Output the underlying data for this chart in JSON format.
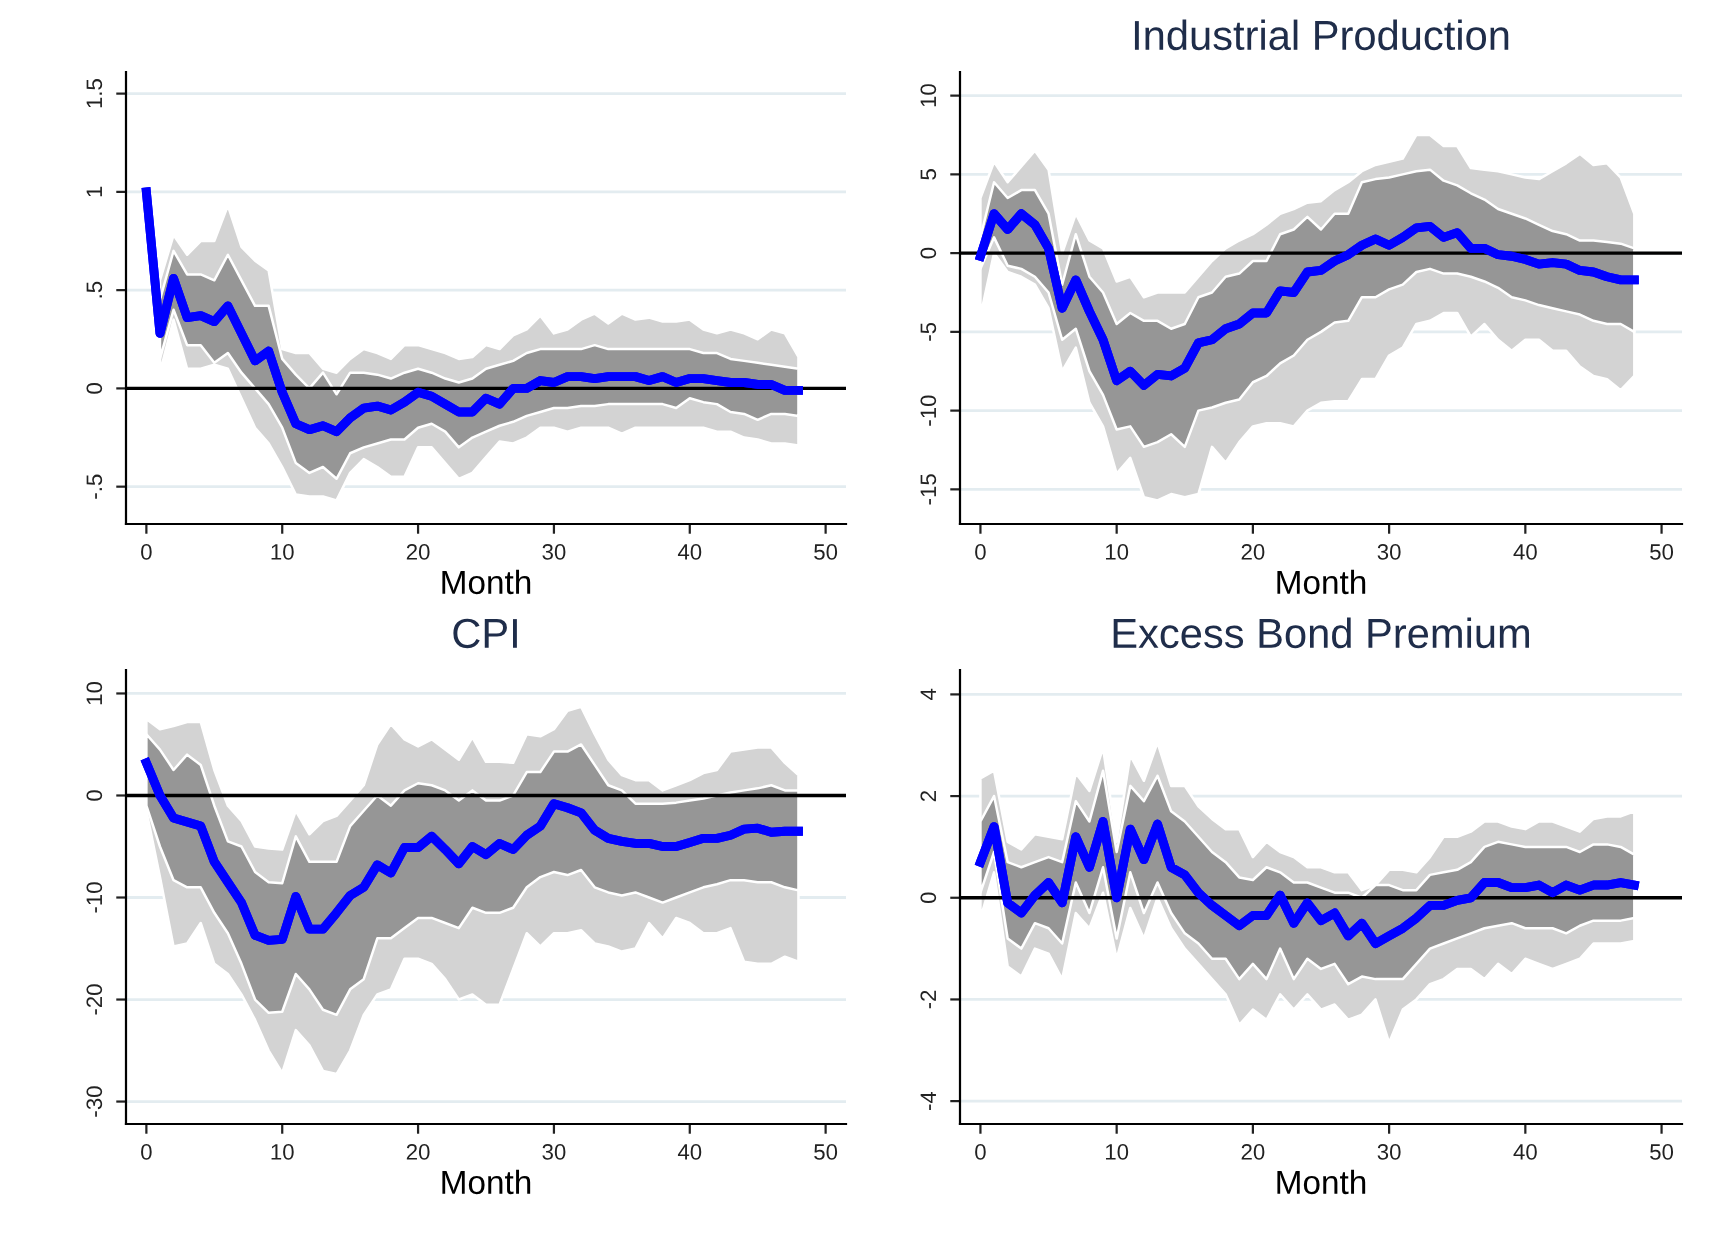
{
  "chart_data": [
    {
      "type": "line",
      "xlabel": "Month",
      "xlim": [
        -1.5,
        51.5
      ],
      "xticks": [
        0,
        10,
        20,
        30,
        40,
        50
      ],
      "ylim": [
        -0.69,
        1.61
      ],
      "yticks": [
        {
          "value": -0.5,
          "label": "-.5"
        },
        0,
        {
          "value": 0.5,
          "label": ".5"
        },
        1,
        1.5
      ],
      "grid": "y",
      "ref_lines": [
        {
          "axis": "y",
          "value": 0,
          "color": "#000000"
        }
      ],
      "series": [
        {
          "color": "#0000ff",
          "x": [
            0,
            1,
            2,
            3,
            4,
            5,
            6,
            7,
            8,
            9,
            10,
            11,
            12,
            13,
            14,
            15,
            16,
            17,
            18,
            19,
            20,
            21,
            22,
            23,
            24,
            25,
            26,
            27,
            28,
            29,
            30,
            31,
            32,
            33,
            34,
            35,
            36,
            37,
            38,
            39,
            40,
            41,
            42,
            43,
            44,
            45,
            46,
            47,
            48
          ],
          "values": [
            1.0,
            0.28,
            0.56,
            0.36,
            0.37,
            0.34,
            0.42,
            0.28,
            0.14,
            0.19,
            -0.02,
            -0.18,
            -0.21,
            -0.19,
            -0.22,
            -0.15,
            -0.1,
            -0.09,
            -0.11,
            -0.07,
            -0.02,
            -0.04,
            -0.08,
            -0.12,
            -0.12,
            -0.05,
            -0.08,
            0.0,
            0.0,
            0.04,
            0.03,
            0.06,
            0.06,
            0.05,
            0.06,
            0.06,
            0.06,
            0.04,
            0.06,
            0.03,
            0.05,
            0.05,
            0.04,
            0.03,
            0.03,
            0.02,
            0.02,
            -0.01,
            -0.01
          ],
          "lower": [
            null,
            0.08,
            0.35,
            0.1,
            0.1,
            0.12,
            0.1,
            -0.05,
            -0.2,
            -0.28,
            -0.4,
            -0.54,
            -0.55,
            -0.55,
            -0.57,
            -0.43,
            -0.36,
            -0.4,
            -0.45,
            -0.45,
            -0.3,
            -0.3,
            -0.38,
            -0.46,
            -0.43,
            -0.35,
            -0.27,
            -0.28,
            -0.25,
            -0.2,
            -0.2,
            -0.22,
            -0.2,
            -0.2,
            -0.2,
            -0.23,
            -0.2,
            -0.2,
            -0.2,
            -0.2,
            -0.2,
            -0.2,
            -0.22,
            -0.22,
            -0.25,
            -0.26,
            -0.28,
            -0.28,
            -0.29
          ],
          "upper": [
            null,
            0.55,
            0.78,
            0.68,
            0.75,
            0.75,
            0.93,
            0.72,
            0.65,
            0.6,
            0.2,
            0.18,
            0.18,
            0.1,
            0.08,
            0.15,
            0.2,
            0.18,
            0.15,
            0.22,
            0.22,
            0.2,
            0.18,
            0.15,
            0.16,
            0.22,
            0.2,
            0.27,
            0.3,
            0.37,
            0.28,
            0.3,
            0.35,
            0.38,
            0.33,
            0.38,
            0.35,
            0.36,
            0.34,
            0.34,
            0.35,
            0.3,
            0.28,
            0.3,
            0.28,
            0.25,
            0.3,
            0.28,
            0.16
          ]
        },
        {
          "color": "#0000ff",
          "x": [
            0,
            1,
            2,
            3,
            4,
            5,
            6,
            7,
            8,
            9,
            10,
            11,
            12,
            13,
            14,
            15,
            16,
            17,
            18,
            19,
            20,
            21,
            22,
            23,
            24,
            25,
            26,
            27,
            28,
            29,
            30,
            31,
            32,
            33,
            34,
            35,
            36,
            37,
            38,
            39,
            40,
            41,
            42,
            43,
            44,
            45,
            46,
            47,
            48
          ],
          "values": [
            1.0,
            0.28,
            0.56,
            0.36,
            0.37,
            0.34,
            0.42,
            0.28,
            0.14,
            0.19,
            -0.02,
            -0.18,
            -0.21,
            -0.19,
            -0.22,
            -0.15,
            -0.1,
            -0.09,
            -0.11,
            -0.07,
            -0.02,
            -0.04,
            -0.08,
            -0.12,
            -0.12,
            -0.05,
            -0.08,
            0.0,
            0.0,
            0.04,
            0.03,
            0.06,
            0.06,
            0.05,
            0.06,
            0.06,
            0.06,
            0.04,
            0.06,
            0.03,
            0.05,
            0.05,
            0.04,
            0.03,
            0.03,
            0.02,
            0.02,
            -0.01,
            -0.01
          ],
          "lower": [
            null,
            0.15,
            0.4,
            0.22,
            0.22,
            0.13,
            0.18,
            0.08,
            0.0,
            -0.08,
            -0.2,
            -0.38,
            -0.43,
            -0.4,
            -0.46,
            -0.33,
            -0.3,
            -0.28,
            -0.26,
            -0.26,
            -0.2,
            -0.18,
            -0.22,
            -0.3,
            -0.25,
            -0.22,
            -0.19,
            -0.17,
            -0.14,
            -0.12,
            -0.1,
            -0.1,
            -0.09,
            -0.09,
            -0.08,
            -0.08,
            -0.08,
            -0.08,
            -0.08,
            -0.1,
            -0.05,
            -0.07,
            -0.08,
            -0.12,
            -0.13,
            -0.16,
            -0.13,
            -0.13,
            -0.14
          ],
          "upper": [
            null,
            0.45,
            0.7,
            0.58,
            0.58,
            0.55,
            0.68,
            0.55,
            0.42,
            0.42,
            0.15,
            0.07,
            0.0,
            0.08,
            -0.03,
            0.08,
            0.08,
            0.07,
            0.05,
            0.08,
            0.1,
            0.08,
            0.05,
            0.03,
            0.05,
            0.1,
            0.12,
            0.14,
            0.18,
            0.2,
            0.2,
            0.2,
            0.2,
            0.22,
            0.2,
            0.2,
            0.2,
            0.2,
            0.2,
            0.2,
            0.2,
            0.18,
            0.18,
            0.15,
            0.14,
            0.13,
            0.12,
            0.11,
            0.1
          ]
        }
      ]
    },
    {
      "type": "line",
      "title": "Industrial Production",
      "xlabel": "Month",
      "xlim": [
        -1.5,
        51.5
      ],
      "xticks": [
        0,
        10,
        20,
        30,
        40,
        50
      ],
      "ylim": [
        -17.2,
        11.5
      ],
      "yticks": [
        -15,
        -10,
        -5,
        0,
        5,
        10
      ],
      "grid": "y",
      "ref_lines": [
        {
          "axis": "y",
          "value": 0,
          "color": "#000000"
        }
      ],
      "series": [
        {
          "color": "#0000ff",
          "x": [
            0,
            1,
            2,
            3,
            4,
            5,
            6,
            7,
            8,
            9,
            10,
            11,
            12,
            13,
            14,
            15,
            16,
            17,
            18,
            19,
            20,
            21,
            22,
            23,
            24,
            25,
            26,
            27,
            28,
            29,
            30,
            31,
            32,
            33,
            34,
            35,
            36,
            37,
            38,
            39,
            40,
            41,
            42,
            43,
            44,
            45,
            46,
            47,
            48
          ],
          "values": [
            -0.2,
            2.5,
            1.5,
            2.5,
            1.8,
            0.3,
            -3.5,
            -1.7,
            -3.7,
            -5.5,
            -8.1,
            -7.5,
            -8.4,
            -7.7,
            -7.8,
            -7.3,
            -5.7,
            -5.5,
            -4.8,
            -4.5,
            -3.8,
            -3.8,
            -2.4,
            -2.5,
            -1.2,
            -1.1,
            -0.5,
            -0.1,
            0.5,
            0.9,
            0.5,
            1.0,
            1.6,
            1.7,
            1.0,
            1.3,
            0.3,
            0.3,
            -0.1,
            -0.2,
            -0.4,
            -0.7,
            -0.6,
            -0.7,
            -1.1,
            -1.2,
            -1.5,
            -1.7,
            -1.7
          ],
          "lower": [
            -4.0,
            0.0,
            -1.2,
            -1.5,
            -2.0,
            -3.5,
            -7.5,
            -6.0,
            -9.5,
            -11.0,
            -14.0,
            -13.0,
            -15.5,
            -15.7,
            -15.3,
            -15.5,
            -15.3,
            -12.3,
            -13.3,
            -12.0,
            -11.0,
            -10.8,
            -10.8,
            -11.0,
            -10.0,
            -9.5,
            -9.4,
            -9.4,
            -8.0,
            -8.0,
            -6.5,
            -6.0,
            -4.5,
            -4.3,
            -3.8,
            -3.8,
            -5.3,
            -4.5,
            -5.5,
            -6.2,
            -5.5,
            -5.5,
            -6.2,
            -6.2,
            -7.2,
            -7.8,
            -8.0,
            -8.7,
            -7.8
          ],
          "upper": [
            3.5,
            5.8,
            4.5,
            5.5,
            6.5,
            5.3,
            0.0,
            2.5,
            0.8,
            0.3,
            -1.8,
            -1.5,
            -2.8,
            -2.5,
            -2.5,
            -2.5,
            -1.5,
            -0.5,
            0.3,
            0.8,
            1.2,
            1.8,
            2.5,
            2.8,
            3.2,
            3.3,
            4.0,
            4.5,
            5.2,
            5.6,
            5.8,
            6.0,
            7.5,
            7.5,
            6.8,
            6.8,
            5.4,
            5.3,
            5.2,
            5.0,
            4.8,
            4.7,
            5.2,
            5.7,
            6.3,
            5.6,
            5.7,
            4.8,
            2.5
          ]
        },
        {
          "color": "#0000ff",
          "x": [
            0,
            1,
            2,
            3,
            4,
            5,
            6,
            7,
            8,
            9,
            10,
            11,
            12,
            13,
            14,
            15,
            16,
            17,
            18,
            19,
            20,
            21,
            22,
            23,
            24,
            25,
            26,
            27,
            28,
            29,
            30,
            31,
            32,
            33,
            34,
            35,
            36,
            37,
            38,
            39,
            40,
            41,
            42,
            43,
            44,
            45,
            46,
            47,
            48
          ],
          "values": [
            -0.2,
            2.5,
            1.5,
            2.5,
            1.8,
            0.3,
            -3.5,
            -1.7,
            -3.7,
            -5.5,
            -8.1,
            -7.5,
            -8.4,
            -7.7,
            -7.8,
            -7.3,
            -5.7,
            -5.5,
            -4.8,
            -4.5,
            -3.8,
            -3.8,
            -2.4,
            -2.5,
            -1.2,
            -1.1,
            -0.5,
            -0.1,
            0.5,
            0.9,
            0.5,
            1.0,
            1.6,
            1.7,
            1.0,
            1.3,
            0.3,
            0.3,
            -0.1,
            -0.2,
            -0.4,
            -0.7,
            -0.6,
            -0.7,
            -1.1,
            -1.2,
            -1.5,
            -1.7,
            -1.7
          ],
          "lower": [
            -1.0,
            1.0,
            -0.8,
            -1.0,
            -1.5,
            -2.5,
            -5.5,
            -4.8,
            -7.5,
            -9.0,
            -11.2,
            -11.0,
            -12.3,
            -12.0,
            -11.5,
            -12.3,
            -10.0,
            -9.8,
            -9.5,
            -9.3,
            -8.2,
            -7.8,
            -7.0,
            -6.5,
            -5.5,
            -5.0,
            -4.4,
            -4.3,
            -2.8,
            -2.8,
            -2.3,
            -2.0,
            -1.2,
            -1.0,
            -1.3,
            -1.3,
            -1.5,
            -1.8,
            -2.2,
            -2.8,
            -3.0,
            -3.3,
            -3.5,
            -3.7,
            -3.9,
            -4.3,
            -4.5,
            -4.5,
            -5.0
          ],
          "upper": [
            1.0,
            4.5,
            3.5,
            4.0,
            4.0,
            2.5,
            -2.0,
            1.2,
            -1.5,
            -2.5,
            -4.5,
            -3.8,
            -4.3,
            -4.3,
            -4.8,
            -4.5,
            -2.8,
            -2.5,
            -1.5,
            -1.3,
            -0.5,
            -0.5,
            1.2,
            1.5,
            2.3,
            1.5,
            2.5,
            2.5,
            4.5,
            4.7,
            4.8,
            5.0,
            5.2,
            5.3,
            4.6,
            4.3,
            3.8,
            3.4,
            2.8,
            2.5,
            2.2,
            1.8,
            1.4,
            1.2,
            0.8,
            0.8,
            0.7,
            0.6,
            0.3
          ]
        }
      ]
    },
    {
      "type": "line",
      "title": "CPI",
      "xlabel": "Month",
      "xlim": [
        -1.5,
        51.5
      ],
      "xticks": [
        0,
        10,
        20,
        30,
        40,
        50
      ],
      "ylim": [
        -32.2,
        12.3
      ],
      "yticks": [
        -30,
        -20,
        -10,
        0,
        10
      ],
      "grid": "y",
      "ref_lines": [
        {
          "axis": "y",
          "value": 0,
          "color": "#000000"
        }
      ],
      "series": [
        {
          "color": "#0000ff",
          "x": [
            0,
            1,
            2,
            3,
            4,
            5,
            6,
            7,
            8,
            9,
            10,
            11,
            12,
            13,
            14,
            15,
            16,
            17,
            18,
            19,
            20,
            21,
            22,
            23,
            24,
            25,
            26,
            27,
            28,
            29,
            30,
            31,
            32,
            33,
            34,
            35,
            36,
            37,
            38,
            39,
            40,
            41,
            42,
            43,
            44,
            45,
            46,
            47,
            48
          ],
          "values": [
            3.2,
            0.0,
            -2.2,
            -2.6,
            -3.0,
            -6.5,
            -8.5,
            -10.5,
            -13.7,
            -14.2,
            -14.1,
            -9.9,
            -13.1,
            -13.1,
            -11.5,
            -9.8,
            -9.0,
            -6.8,
            -7.6,
            -5.1,
            -5.1,
            -4.0,
            -5.3,
            -6.7,
            -5.0,
            -5.8,
            -4.7,
            -5.3,
            -3.9,
            -3.0,
            -0.8,
            -1.2,
            -1.7,
            -3.4,
            -4.2,
            -4.5,
            -4.7,
            -4.7,
            -5.0,
            -5.0,
            -4.6,
            -4.2,
            -4.2,
            -3.9,
            -3.3,
            -3.2,
            -3.6,
            -3.5,
            -3.5
          ],
          "lower": [
            -1.5,
            -8.0,
            -14.8,
            -14.5,
            -12.5,
            -16.5,
            -17.5,
            -19.5,
            -22.0,
            -25.0,
            -27.2,
            -23.0,
            -24.5,
            -27.0,
            -27.3,
            -25.0,
            -21.5,
            -19.5,
            -19.0,
            -16.0,
            -16.0,
            -16.5,
            -18.0,
            -20.0,
            -19.5,
            -20.5,
            -20.5,
            -17.0,
            -13.5,
            -14.8,
            -13.5,
            -13.5,
            -13.2,
            -14.5,
            -14.8,
            -15.3,
            -15.0,
            -12.5,
            -14.0,
            -12.0,
            -12.5,
            -13.5,
            -13.5,
            -13.0,
            -16.3,
            -16.5,
            -16.5,
            -15.8,
            -16.3
          ],
          "upper": [
            7.5,
            6.5,
            6.8,
            7.2,
            7.2,
            2.5,
            -1.0,
            -2.5,
            -5.0,
            -5.2,
            -5.3,
            -1.5,
            -3.8,
            -2.5,
            -2.0,
            -0.5,
            1.0,
            5.0,
            7.0,
            5.5,
            4.8,
            5.5,
            4.5,
            3.5,
            5.7,
            3.3,
            3.3,
            3.2,
            6.0,
            5.8,
            6.5,
            8.3,
            8.7,
            6.0,
            3.5,
            2.0,
            1.5,
            1.5,
            0.5,
            1.0,
            1.5,
            2.2,
            2.5,
            4.3,
            4.5,
            4.7,
            4.7,
            3.2,
            2.0
          ]
        },
        {
          "color": "#0000ff",
          "x": [
            0,
            1,
            2,
            3,
            4,
            5,
            6,
            7,
            8,
            9,
            10,
            11,
            12,
            13,
            14,
            15,
            16,
            17,
            18,
            19,
            20,
            21,
            22,
            23,
            24,
            25,
            26,
            27,
            28,
            29,
            30,
            31,
            32,
            33,
            34,
            35,
            36,
            37,
            38,
            39,
            40,
            41,
            42,
            43,
            44,
            45,
            46,
            47,
            48
          ],
          "values": [
            3.2,
            0.0,
            -2.2,
            -2.6,
            -3.0,
            -6.5,
            -8.5,
            -10.5,
            -13.7,
            -14.2,
            -14.1,
            -9.9,
            -13.1,
            -13.1,
            -11.5,
            -9.8,
            -9.0,
            -6.8,
            -7.6,
            -5.1,
            -5.1,
            -4.0,
            -5.3,
            -6.7,
            -5.0,
            -5.8,
            -4.7,
            -5.3,
            -3.9,
            -3.0,
            -0.8,
            -1.2,
            -1.7,
            -3.4,
            -4.2,
            -4.5,
            -4.7,
            -4.7,
            -5.0,
            -5.0,
            -4.6,
            -4.2,
            -4.2,
            -3.9,
            -3.3,
            -3.2,
            -3.6,
            -3.5,
            -3.5
          ],
          "lower": [
            -1.0,
            -5.0,
            -8.3,
            -9.0,
            -9.0,
            -11.5,
            -13.5,
            -16.5,
            -20.0,
            -21.3,
            -21.2,
            -17.5,
            -19.0,
            -21.0,
            -21.5,
            -19.0,
            -18.0,
            -14.0,
            -14.0,
            -13.0,
            -12.0,
            -12.0,
            -12.5,
            -13.0,
            -11.0,
            -11.5,
            -11.5,
            -11.0,
            -9.0,
            -8.0,
            -7.5,
            -7.8,
            -7.3,
            -9.0,
            -9.5,
            -9.8,
            -9.5,
            -10.0,
            -10.5,
            -10.0,
            -9.5,
            -9.0,
            -8.7,
            -8.3,
            -8.3,
            -8.5,
            -8.5,
            -9.0,
            -9.3
          ],
          "upper": [
            6.0,
            4.5,
            2.5,
            4.0,
            3.0,
            -1.0,
            -4.5,
            -5.0,
            -7.5,
            -8.5,
            -8.6,
            -4.0,
            -6.5,
            -6.5,
            -6.5,
            -3.0,
            -1.5,
            0.0,
            -1.0,
            0.5,
            1.2,
            1.0,
            0.5,
            -0.5,
            0.5,
            -0.5,
            -0.5,
            0.0,
            2.3,
            2.3,
            4.3,
            4.3,
            5.0,
            3.0,
            1.0,
            0.5,
            -0.8,
            -0.8,
            -0.8,
            -0.7,
            -0.5,
            -0.3,
            0.0,
            0.3,
            0.5,
            0.7,
            1.0,
            0.5,
            0.5
          ]
        }
      ]
    },
    {
      "type": "line",
      "title": "Excess Bond Premium",
      "xlabel": "Month",
      "xlim": [
        -1.5,
        51.5
      ],
      "xticks": [
        0,
        10,
        20,
        30,
        40,
        50
      ],
      "ylim": [
        -4.45,
        4.48
      ],
      "yticks": [
        -4,
        -2,
        0,
        2,
        4
      ],
      "grid": "y",
      "ref_lines": [
        {
          "axis": "y",
          "value": 0,
          "color": "#000000"
        }
      ],
      "series": [
        {
          "color": "#0000ff",
          "x": [
            0,
            1,
            2,
            3,
            4,
            5,
            6,
            7,
            8,
            9,
            10,
            11,
            12,
            13,
            14,
            15,
            16,
            17,
            18,
            19,
            20,
            21,
            22,
            23,
            24,
            25,
            26,
            27,
            28,
            29,
            30,
            31,
            32,
            33,
            34,
            35,
            36,
            37,
            38,
            39,
            40,
            41,
            42,
            43,
            44,
            45,
            46,
            47,
            48
          ],
          "values": [
            0.7,
            1.4,
            -0.1,
            -0.3,
            0.05,
            0.3,
            -0.1,
            1.2,
            0.6,
            1.5,
            0.0,
            1.35,
            0.75,
            1.45,
            0.6,
            0.45,
            0.1,
            -0.15,
            -0.35,
            -0.55,
            -0.35,
            -0.35,
            0.05,
            -0.5,
            -0.1,
            -0.45,
            -0.3,
            -0.75,
            -0.5,
            -0.9,
            -0.75,
            -0.6,
            -0.4,
            -0.15,
            -0.15,
            -0.05,
            0.0,
            0.3,
            0.3,
            0.2,
            0.2,
            0.25,
            0.1,
            0.25,
            0.15,
            0.25,
            0.25,
            0.3,
            0.25
          ],
          "lower": [
            -0.4,
            0.5,
            -1.35,
            -1.55,
            -1.0,
            -1.1,
            -1.6,
            -0.3,
            -0.6,
            0.1,
            -1.2,
            -0.2,
            -0.8,
            0.0,
            -0.6,
            -1.0,
            -1.3,
            -1.6,
            -1.9,
            -2.5,
            -2.2,
            -2.4,
            -1.9,
            -2.2,
            -1.9,
            -2.2,
            -2.1,
            -2.4,
            -2.3,
            -2.0,
            -2.85,
            -2.2,
            -2.0,
            -1.7,
            -1.6,
            -1.4,
            -1.4,
            -1.6,
            -1.3,
            -1.5,
            -1.2,
            -1.3,
            -1.4,
            -1.3,
            -1.2,
            -0.9,
            -0.9,
            -0.9,
            -0.85
          ],
          "upper": [
            2.35,
            2.5,
            1.1,
            0.95,
            1.25,
            1.2,
            1.15,
            2.45,
            2.1,
            2.95,
            1.1,
            2.8,
            2.3,
            3.05,
            2.2,
            2.2,
            1.8,
            1.55,
            1.35,
            1.35,
            0.8,
            1.1,
            0.9,
            0.8,
            0.6,
            0.6,
            0.5,
            0.5,
            0.15,
            0.25,
            0.55,
            0.55,
            0.5,
            0.8,
            1.2,
            1.2,
            1.3,
            1.5,
            1.5,
            1.4,
            1.35,
            1.5,
            1.5,
            1.4,
            1.3,
            1.55,
            1.6,
            1.6,
            1.7
          ]
        },
        {
          "color": "#0000ff",
          "x": [
            0,
            1,
            2,
            3,
            4,
            5,
            6,
            7,
            8,
            9,
            10,
            11,
            12,
            13,
            14,
            15,
            16,
            17,
            18,
            19,
            20,
            21,
            22,
            23,
            24,
            25,
            26,
            27,
            28,
            29,
            30,
            31,
            32,
            33,
            34,
            35,
            36,
            37,
            38,
            39,
            40,
            41,
            42,
            43,
            44,
            45,
            46,
            47,
            48
          ],
          "values": [
            0.7,
            1.4,
            -0.1,
            -0.3,
            0.05,
            0.3,
            -0.1,
            1.2,
            0.6,
            1.5,
            0.0,
            1.35,
            0.75,
            1.45,
            0.6,
            0.45,
            0.1,
            -0.15,
            -0.35,
            -0.55,
            -0.35,
            -0.35,
            0.05,
            -0.5,
            -0.1,
            -0.45,
            -0.3,
            -0.75,
            -0.5,
            -0.9,
            -0.75,
            -0.6,
            -0.4,
            -0.15,
            -0.15,
            -0.05,
            0.0,
            0.3,
            0.3,
            0.2,
            0.2,
            0.25,
            0.1,
            0.25,
            0.15,
            0.25,
            0.25,
            0.3,
            0.25
          ],
          "lower": [
            0.1,
            0.9,
            -0.8,
            -1.0,
            -0.5,
            -0.6,
            -0.9,
            0.3,
            -0.3,
            0.6,
            -0.8,
            0.5,
            -0.3,
            0.3,
            -0.3,
            -0.7,
            -0.9,
            -1.2,
            -1.2,
            -1.6,
            -1.3,
            -1.6,
            -1.0,
            -1.6,
            -1.2,
            -1.4,
            -1.3,
            -1.7,
            -1.55,
            -1.6,
            -1.6,
            -1.6,
            -1.3,
            -1.0,
            -0.9,
            -0.8,
            -0.7,
            -0.6,
            -0.55,
            -0.5,
            -0.6,
            -0.6,
            -0.6,
            -0.7,
            -0.55,
            -0.45,
            -0.45,
            -0.45,
            -0.4
          ],
          "upper": [
            1.5,
            2.0,
            0.7,
            0.6,
            0.7,
            0.8,
            0.7,
            1.9,
            1.5,
            2.5,
            0.9,
            2.2,
            1.9,
            2.4,
            1.7,
            1.5,
            1.2,
            0.9,
            0.7,
            0.4,
            0.35,
            0.6,
            0.5,
            0.3,
            0.3,
            0.2,
            0.1,
            0.1,
            0.0,
            0.25,
            0.25,
            0.15,
            0.15,
            0.45,
            0.5,
            0.55,
            0.7,
            1.0,
            1.1,
            1.05,
            1.0,
            1.0,
            1.0,
            1.0,
            0.9,
            1.05,
            1.05,
            1.0,
            0.85
          ]
        }
      ]
    }
  ]
}
